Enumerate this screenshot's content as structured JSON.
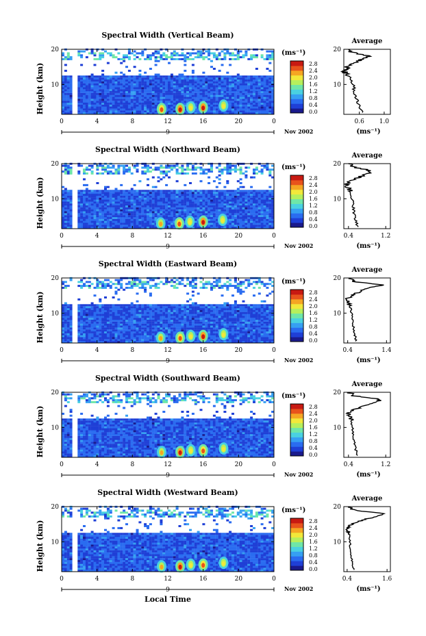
{
  "figure": {
    "xlabel": "Local Time",
    "colorbar_unit": "(ms⁻¹)",
    "colorbar_ticks": [
      "0.0",
      "0.4",
      "0.8",
      "1.2",
      "1.6",
      "2.0",
      "2.4",
      "2.8"
    ],
    "date_label": "Nov 2002",
    "day_label": "9",
    "ylabel": "Height (km)",
    "avg_title": "Average",
    "avg_xunit": "(ms⁻¹)",
    "colors": {
      "colormap": [
        "#1a1a8c",
        "#1f3fd6",
        "#2a6cf0",
        "#36a0f2",
        "#4ad1e0",
        "#6fe6a8",
        "#b6ef5c",
        "#f2e83a",
        "#f5a623",
        "#e8531c",
        "#c81a12"
      ],
      "profile_line": "#000000"
    }
  },
  "chart_data": [
    {
      "type": "heatmap",
      "title": "Spectral Width (Vertical Beam)",
      "xlabel": "Local Time",
      "ylabel": "Height (km)",
      "x_ticks": [
        "0",
        "4",
        "8",
        "12",
        "16",
        "20",
        "0"
      ],
      "y_ticks": [
        "10",
        "20"
      ],
      "xlim": [
        0,
        24
      ],
      "ylim": [
        1.5,
        20
      ],
      "colorbar_range": [
        0.0,
        2.8
      ],
      "hot_spots": [
        {
          "time": 11.3,
          "height": 3,
          "value": 2.4
        },
        {
          "time": 13.4,
          "height": 3,
          "value": 2.6
        },
        {
          "time": 14.6,
          "height": 3.5,
          "value": 2.0
        },
        {
          "time": 16.0,
          "height": 3.5,
          "value": 2.6
        },
        {
          "time": 18.3,
          "height": 4,
          "value": 2.0
        }
      ],
      "average_profile": {
        "x_ticks": [
          "0.6",
          "1.0"
        ],
        "xlim": [
          0.35,
          1.1
        ],
        "height": [
          2,
          4,
          6,
          8,
          10,
          12,
          13,
          14,
          15,
          16,
          17,
          18,
          19,
          20
        ],
        "value": [
          0.65,
          0.6,
          0.55,
          0.52,
          0.5,
          0.45,
          0.4,
          0.35,
          0.42,
          0.48,
          0.6,
          0.75,
          0.5,
          0.45
        ]
      }
    },
    {
      "type": "heatmap",
      "title": "Spectral Width (Northward Beam)",
      "xlabel": "Local Time",
      "ylabel": "Height (km)",
      "x_ticks": [
        "0",
        "4",
        "8",
        "12",
        "16",
        "20",
        "0"
      ],
      "y_ticks": [
        "10",
        "20"
      ],
      "xlim": [
        0,
        24
      ],
      "ylim": [
        1.5,
        20
      ],
      "colorbar_range": [
        0.0,
        2.8
      ],
      "hot_spots": [
        {
          "time": 11.2,
          "height": 3,
          "value": 2.2
        },
        {
          "time": 13.3,
          "height": 3,
          "value": 2.4
        },
        {
          "time": 14.5,
          "height": 3.5,
          "value": 2.0
        },
        {
          "time": 16.0,
          "height": 3.5,
          "value": 2.6
        },
        {
          "time": 18.2,
          "height": 4,
          "value": 2.0
        }
      ],
      "average_profile": {
        "x_ticks": [
          "0.4",
          "1.2"
        ],
        "xlim": [
          0.3,
          1.3
        ],
        "height": [
          2,
          4,
          6,
          8,
          10,
          12,
          13,
          14,
          15,
          16,
          17,
          18,
          19,
          20
        ],
        "value": [
          0.6,
          0.55,
          0.52,
          0.5,
          0.48,
          0.45,
          0.4,
          0.35,
          0.45,
          0.6,
          0.8,
          0.9,
          0.5,
          0.4
        ]
      }
    },
    {
      "type": "heatmap",
      "title": "Spectral Width (Eastward Beam)",
      "xlabel": "Local Time",
      "ylabel": "Height (km)",
      "x_ticks": [
        "0",
        "4",
        "8",
        "12",
        "16",
        "20",
        "0"
      ],
      "y_ticks": [
        "10",
        "20"
      ],
      "xlim": [
        0,
        24
      ],
      "ylim": [
        1.5,
        20
      ],
      "colorbar_range": [
        0.0,
        2.8
      ],
      "hot_spots": [
        {
          "time": 11.2,
          "height": 3,
          "value": 2.2
        },
        {
          "time": 13.4,
          "height": 3,
          "value": 2.4
        },
        {
          "time": 14.6,
          "height": 3.5,
          "value": 2.0
        },
        {
          "time": 16.0,
          "height": 3.5,
          "value": 2.6
        },
        {
          "time": 18.3,
          "height": 4,
          "value": 2.0
        }
      ],
      "average_profile": {
        "x_ticks": [
          "0.4",
          "1.4"
        ],
        "xlim": [
          0.3,
          1.5
        ],
        "height": [
          2,
          4,
          6,
          8,
          10,
          12,
          13,
          14,
          15,
          16,
          17,
          18,
          19,
          20
        ],
        "value": [
          0.62,
          0.58,
          0.55,
          0.52,
          0.5,
          0.46,
          0.42,
          0.38,
          0.5,
          0.7,
          0.9,
          1.3,
          0.55,
          0.45
        ]
      }
    },
    {
      "type": "heatmap",
      "title": "Spectral Width (Southward Beam)",
      "xlabel": "Local Time",
      "ylabel": "Height (km)",
      "x_ticks": [
        "0",
        "4",
        "8",
        "12",
        "16",
        "20",
        "0"
      ],
      "y_ticks": [
        "10",
        "20"
      ],
      "xlim": [
        0,
        24
      ],
      "ylim": [
        1.5,
        20
      ],
      "colorbar_range": [
        0.0,
        2.8
      ],
      "hot_spots": [
        {
          "time": 11.3,
          "height": 3,
          "value": 2.2
        },
        {
          "time": 13.4,
          "height": 3,
          "value": 2.6
        },
        {
          "time": 14.6,
          "height": 3.5,
          "value": 2.0
        },
        {
          "time": 16.0,
          "height": 3.5,
          "value": 2.4
        },
        {
          "time": 18.3,
          "height": 4,
          "value": 2.0
        }
      ],
      "average_profile": {
        "x_ticks": [
          "0.4",
          "1.2"
        ],
        "xlim": [
          0.3,
          1.3
        ],
        "height": [
          2,
          4,
          6,
          8,
          10,
          12,
          13,
          14,
          15,
          16,
          17,
          18,
          19,
          20
        ],
        "value": [
          0.6,
          0.55,
          0.52,
          0.5,
          0.48,
          0.45,
          0.42,
          0.38,
          0.5,
          0.7,
          0.95,
          1.1,
          0.5,
          0.42
        ]
      }
    },
    {
      "type": "heatmap",
      "title": "Spectral Width (Westward Beam)",
      "xlabel": "Local Time",
      "ylabel": "Height (km)",
      "x_ticks": [
        "0",
        "4",
        "8",
        "12",
        "16",
        "20",
        "0"
      ],
      "y_ticks": [
        "10",
        "20"
      ],
      "xlim": [
        0,
        24
      ],
      "ylim": [
        1.5,
        20
      ],
      "colorbar_range": [
        0.0,
        2.8
      ],
      "hot_spots": [
        {
          "time": 11.3,
          "height": 3,
          "value": 2.2
        },
        {
          "time": 13.4,
          "height": 3,
          "value": 2.6
        },
        {
          "time": 14.6,
          "height": 3.5,
          "value": 2.0
        },
        {
          "time": 16.0,
          "height": 3.5,
          "value": 2.4
        },
        {
          "time": 18.3,
          "height": 4,
          "value": 2.0
        }
      ],
      "average_profile": {
        "x_ticks": [
          "0.4",
          "1.6"
        ],
        "xlim": [
          0.3,
          1.7
        ],
        "height": [
          2,
          4,
          6,
          8,
          10,
          12,
          13,
          14,
          15,
          16,
          17,
          18,
          19,
          20
        ],
        "value": [
          0.6,
          0.56,
          0.52,
          0.5,
          0.48,
          0.46,
          0.44,
          0.4,
          0.55,
          0.8,
          1.2,
          1.5,
          0.6,
          0.45
        ]
      }
    }
  ]
}
